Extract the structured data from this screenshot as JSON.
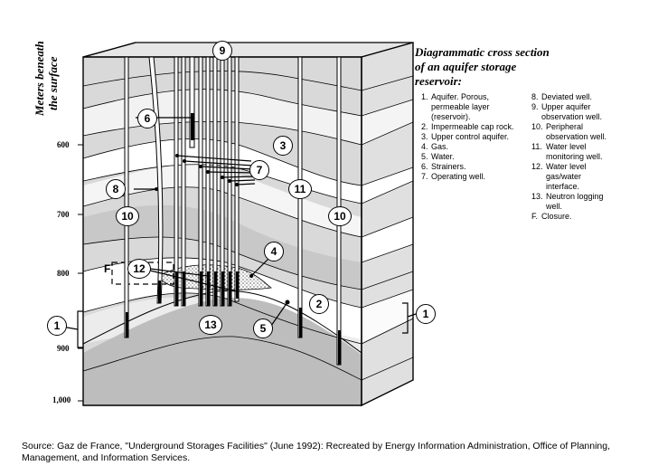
{
  "axis": {
    "title_line1": "Meters beneath",
    "title_line2": "the surface",
    "ticks": [
      "600",
      "700",
      "800",
      "900",
      "1,000"
    ]
  },
  "title": {
    "line1": "Diagrammatic cross section",
    "line2": "of an aquifer storage",
    "line3": "reservoir:"
  },
  "legend_left": [
    {
      "num": "1.",
      "text": "Aquifer. Porous,\npermeable layer\n(reservoir)."
    },
    {
      "num": "2.",
      "text": "Impermeable cap rock."
    },
    {
      "num": "3.",
      "text": "Upper control aquifer."
    },
    {
      "num": "4.",
      "text": "Gas."
    },
    {
      "num": "5.",
      "text": "Water."
    },
    {
      "num": "6.",
      "text": "Strainers."
    },
    {
      "num": "7.",
      "text": "Operating well."
    }
  ],
  "legend_right": [
    {
      "num": "8.",
      "text": "Deviated well."
    },
    {
      "num": "9.",
      "text": "Upper aquifer\nobservation well."
    },
    {
      "num": "10.",
      "text": "Peripheral\nobservation well."
    },
    {
      "num": "11.",
      "text": "Water level\nmonitoring well."
    },
    {
      "num": "12.",
      "text": "Water level\ngas/water\ninterface."
    },
    {
      "num": "13.",
      "text": "Neutron logging\nwell."
    },
    {
      "num": "F.",
      "text": "Closure."
    }
  ],
  "callouts": {
    "c1_left": "1",
    "c1_right": "1",
    "c2": "2",
    "c3": "3",
    "c4": "4",
    "c5": "5",
    "c6": "6",
    "c7": "7",
    "c8": "8",
    "c9": "9",
    "c10_left": "10",
    "c10_right": "10",
    "c11": "11",
    "c12": "12",
    "c13": "13",
    "f": "F"
  },
  "source": {
    "line1": "Source:  Gaz de France, \"Underground Storages Facilities\" (June 1992):  Recreated by Energy Information Administration, Office of Planning,",
    "line2": "Management, and Information Services."
  }
}
